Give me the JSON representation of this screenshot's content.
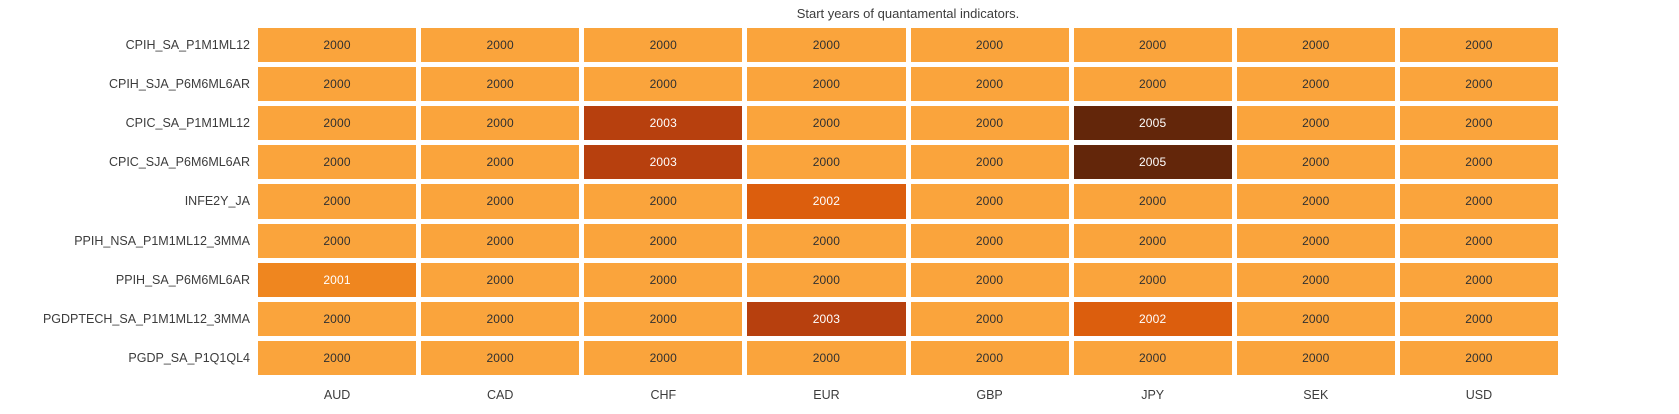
{
  "chart_data": {
    "type": "heatmap",
    "title": "Start years of quantamental indicators.",
    "x_categories": [
      "AUD",
      "CAD",
      "CHF",
      "EUR",
      "GBP",
      "JPY",
      "SEK",
      "USD"
    ],
    "y_categories": [
      "CPIH_SA_P1M1ML12",
      "CPIH_SJA_P6M6ML6AR",
      "CPIC_SA_P1M1ML12",
      "CPIC_SJA_P6M6ML6AR",
      "INFE2Y_JA",
      "PPIH_NSA_P1M1ML12_3MMA",
      "PPIH_SA_P6M6ML6AR",
      "PGDPTECH_SA_P1M1ML12_3MMA",
      "PGDP_SA_P1Q1QL4"
    ],
    "values": [
      [
        2000,
        2000,
        2000,
        2000,
        2000,
        2000,
        2000,
        2000
      ],
      [
        2000,
        2000,
        2000,
        2000,
        2000,
        2000,
        2000,
        2000
      ],
      [
        2000,
        2000,
        2003,
        2000,
        2000,
        2005,
        2000,
        2000
      ],
      [
        2000,
        2000,
        2003,
        2000,
        2000,
        2005,
        2000,
        2000
      ],
      [
        2000,
        2000,
        2000,
        2002,
        2000,
        2000,
        2000,
        2000
      ],
      [
        2000,
        2000,
        2000,
        2000,
        2000,
        2000,
        2000,
        2000
      ],
      [
        2001,
        2000,
        2000,
        2000,
        2000,
        2000,
        2000,
        2000
      ],
      [
        2000,
        2000,
        2000,
        2003,
        2000,
        2002,
        2000,
        2000
      ],
      [
        2000,
        2000,
        2000,
        2000,
        2000,
        2000,
        2000,
        2000
      ]
    ],
    "annotations": true,
    "grid": false,
    "legend_position": "none",
    "value_range": [
      2000,
      2005
    ],
    "colors": {
      "background": "#FFFFFF",
      "cell_gap": "#FFFFFF",
      "label_text": "#3C3C3C",
      "year_styles": {
        "2000": {
          "bg": "#FAA43C",
          "text": "#303030"
        },
        "2001": {
          "bg": "#EF861F",
          "text": "#FFFFFF"
        },
        "2002": {
          "bg": "#DC5E0D",
          "text": "#FFFFFF"
        },
        "2003": {
          "bg": "#B7400E",
          "text": "#FFFFFF"
        },
        "2005": {
          "bg": "#63260A",
          "text": "#FFFFFF"
        }
      }
    }
  }
}
